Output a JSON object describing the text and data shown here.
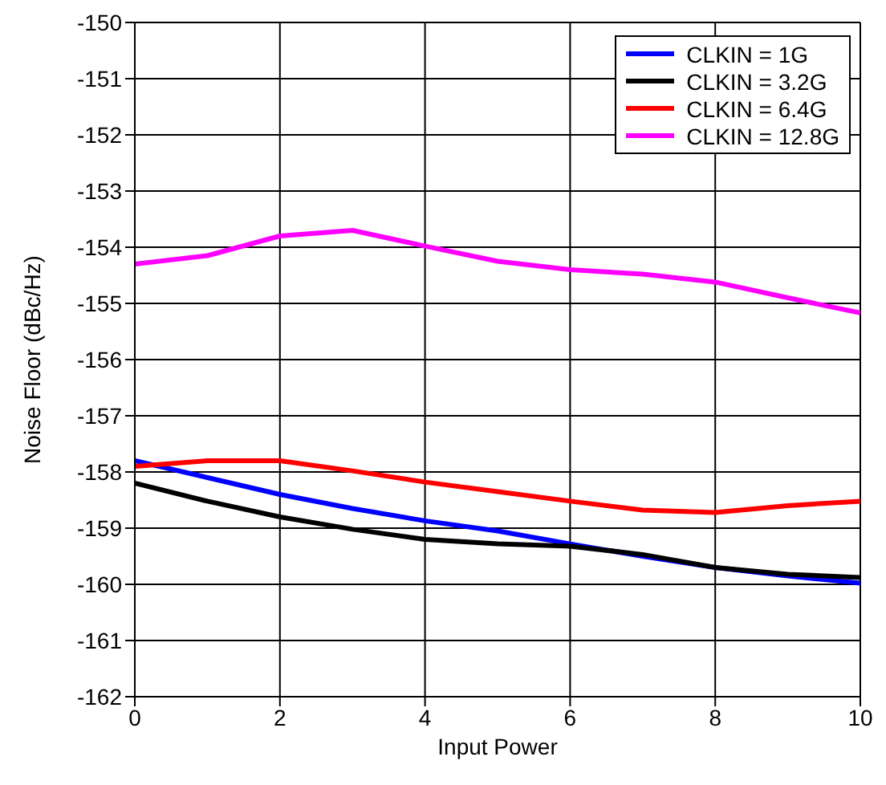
{
  "chart_data": {
    "type": "line",
    "xlabel": "Input Power",
    "ylabel": "Noise Floor (dBc/Hz)",
    "x": [
      0,
      1,
      2,
      3,
      4,
      5,
      6,
      7,
      8,
      9,
      10
    ],
    "xlim": [
      0,
      10
    ],
    "xticks": [
      0,
      2,
      4,
      6,
      8,
      10
    ],
    "ylim": [
      -162,
      -150
    ],
    "yticks": [
      -162,
      -161,
      -160,
      -159,
      -158,
      -157,
      -156,
      -155,
      -154,
      -153,
      -152,
      -151,
      -150
    ],
    "grid": true,
    "legend": "top right",
    "marker": "none",
    "line_style": "solid",
    "series": [
      {
        "name": "CLKIN = 1G",
        "color": "#0000ff",
        "values": [
          -157.8,
          -158.1,
          -158.4,
          -158.65,
          -158.87,
          -159.05,
          -159.28,
          -159.5,
          -159.7,
          -159.85,
          -159.98
        ]
      },
      {
        "name": "CLKIN = 3.2G",
        "color": "#000000",
        "values": [
          -158.2,
          -158.52,
          -158.8,
          -159.02,
          -159.2,
          -159.28,
          -159.32,
          -159.47,
          -159.7,
          -159.82,
          -159.88
        ]
      },
      {
        "name": "CLKIN = 6.4G",
        "color": "#ff0000",
        "values": [
          -157.9,
          -157.8,
          -157.8,
          -157.98,
          -158.18,
          -158.35,
          -158.52,
          -158.68,
          -158.72,
          -158.6,
          -158.52
        ]
      },
      {
        "name": "CLKIN = 12.8G",
        "color": "#ff00ff",
        "values": [
          -154.3,
          -154.15,
          -153.8,
          -153.7,
          -153.98,
          -154.25,
          -154.4,
          -154.48,
          -154.62,
          -154.9,
          -155.17
        ]
      }
    ]
  }
}
